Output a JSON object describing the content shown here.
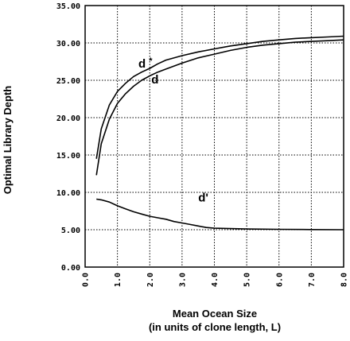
{
  "chart_data": {
    "type": "line",
    "title": "",
    "xlabel": "Mean Ocean Size",
    "xlabel2": "(in units of clone length, L)",
    "ylabel": "Optimal Library Depth",
    "xlim": [
      0,
      8
    ],
    "ylim": [
      0,
      35
    ],
    "grid": true,
    "x_ticks": [
      "0.0",
      "1.0",
      "2.0",
      "3.0",
      "4.0",
      "5.0",
      "6.0",
      "7.0",
      "8.0"
    ],
    "y_ticks": [
      "0.00",
      "5.00",
      "10.00",
      "15.00",
      "20.00",
      "25.00",
      "30.00",
      "35.00"
    ],
    "series": [
      {
        "name": "d*",
        "x": [
          0.35,
          0.5,
          0.75,
          1.0,
          1.25,
          1.5,
          1.75,
          2.0,
          2.25,
          2.5,
          3.0,
          3.5,
          4.0,
          4.5,
          5.0,
          5.5,
          6.0,
          6.5,
          7.0,
          7.5,
          8.0
        ],
        "y": [
          14.5,
          18.5,
          21.7,
          23.5,
          24.6,
          25.5,
          26.1,
          26.6,
          27.2,
          27.7,
          28.3,
          28.8,
          29.2,
          29.6,
          29.9,
          30.2,
          30.4,
          30.6,
          30.7,
          30.8,
          30.9
        ]
      },
      {
        "name": "d",
        "x": [
          0.35,
          0.5,
          0.75,
          1.0,
          1.25,
          1.5,
          1.75,
          2.0,
          2.25,
          2.5,
          3.0,
          3.5,
          4.0,
          4.5,
          5.0,
          5.5,
          6.0,
          6.5,
          7.0,
          7.5,
          8.0
        ],
        "y": [
          12.3,
          16.5,
          19.8,
          21.9,
          23.2,
          24.2,
          25.0,
          25.6,
          26.1,
          26.5,
          27.3,
          28.0,
          28.5,
          29.0,
          29.4,
          29.7,
          29.9,
          30.1,
          30.2,
          30.3,
          30.4
        ]
      },
      {
        "name": "d'",
        "x": [
          0.35,
          0.5,
          0.75,
          1.0,
          1.25,
          1.5,
          1.75,
          2.0,
          2.25,
          2.5,
          2.75,
          3.0,
          3.25,
          3.5,
          3.75,
          4.0,
          4.5,
          5.0,
          6.0,
          7.0,
          8.0
        ],
        "y": [
          9.1,
          9.0,
          8.7,
          8.2,
          7.8,
          7.4,
          7.1,
          6.8,
          6.6,
          6.4,
          6.1,
          5.9,
          5.7,
          5.5,
          5.3,
          5.2,
          5.15,
          5.1,
          5.05,
          5.02,
          5.0
        ]
      }
    ],
    "annotations": [
      {
        "text": "d",
        "sup": "*",
        "x": 1.65,
        "y": 26.7
      },
      {
        "text": "d",
        "x": 2.05,
        "y": 24.6
      },
      {
        "text": "d'",
        "x": 3.5,
        "y": 8.8
      }
    ]
  }
}
